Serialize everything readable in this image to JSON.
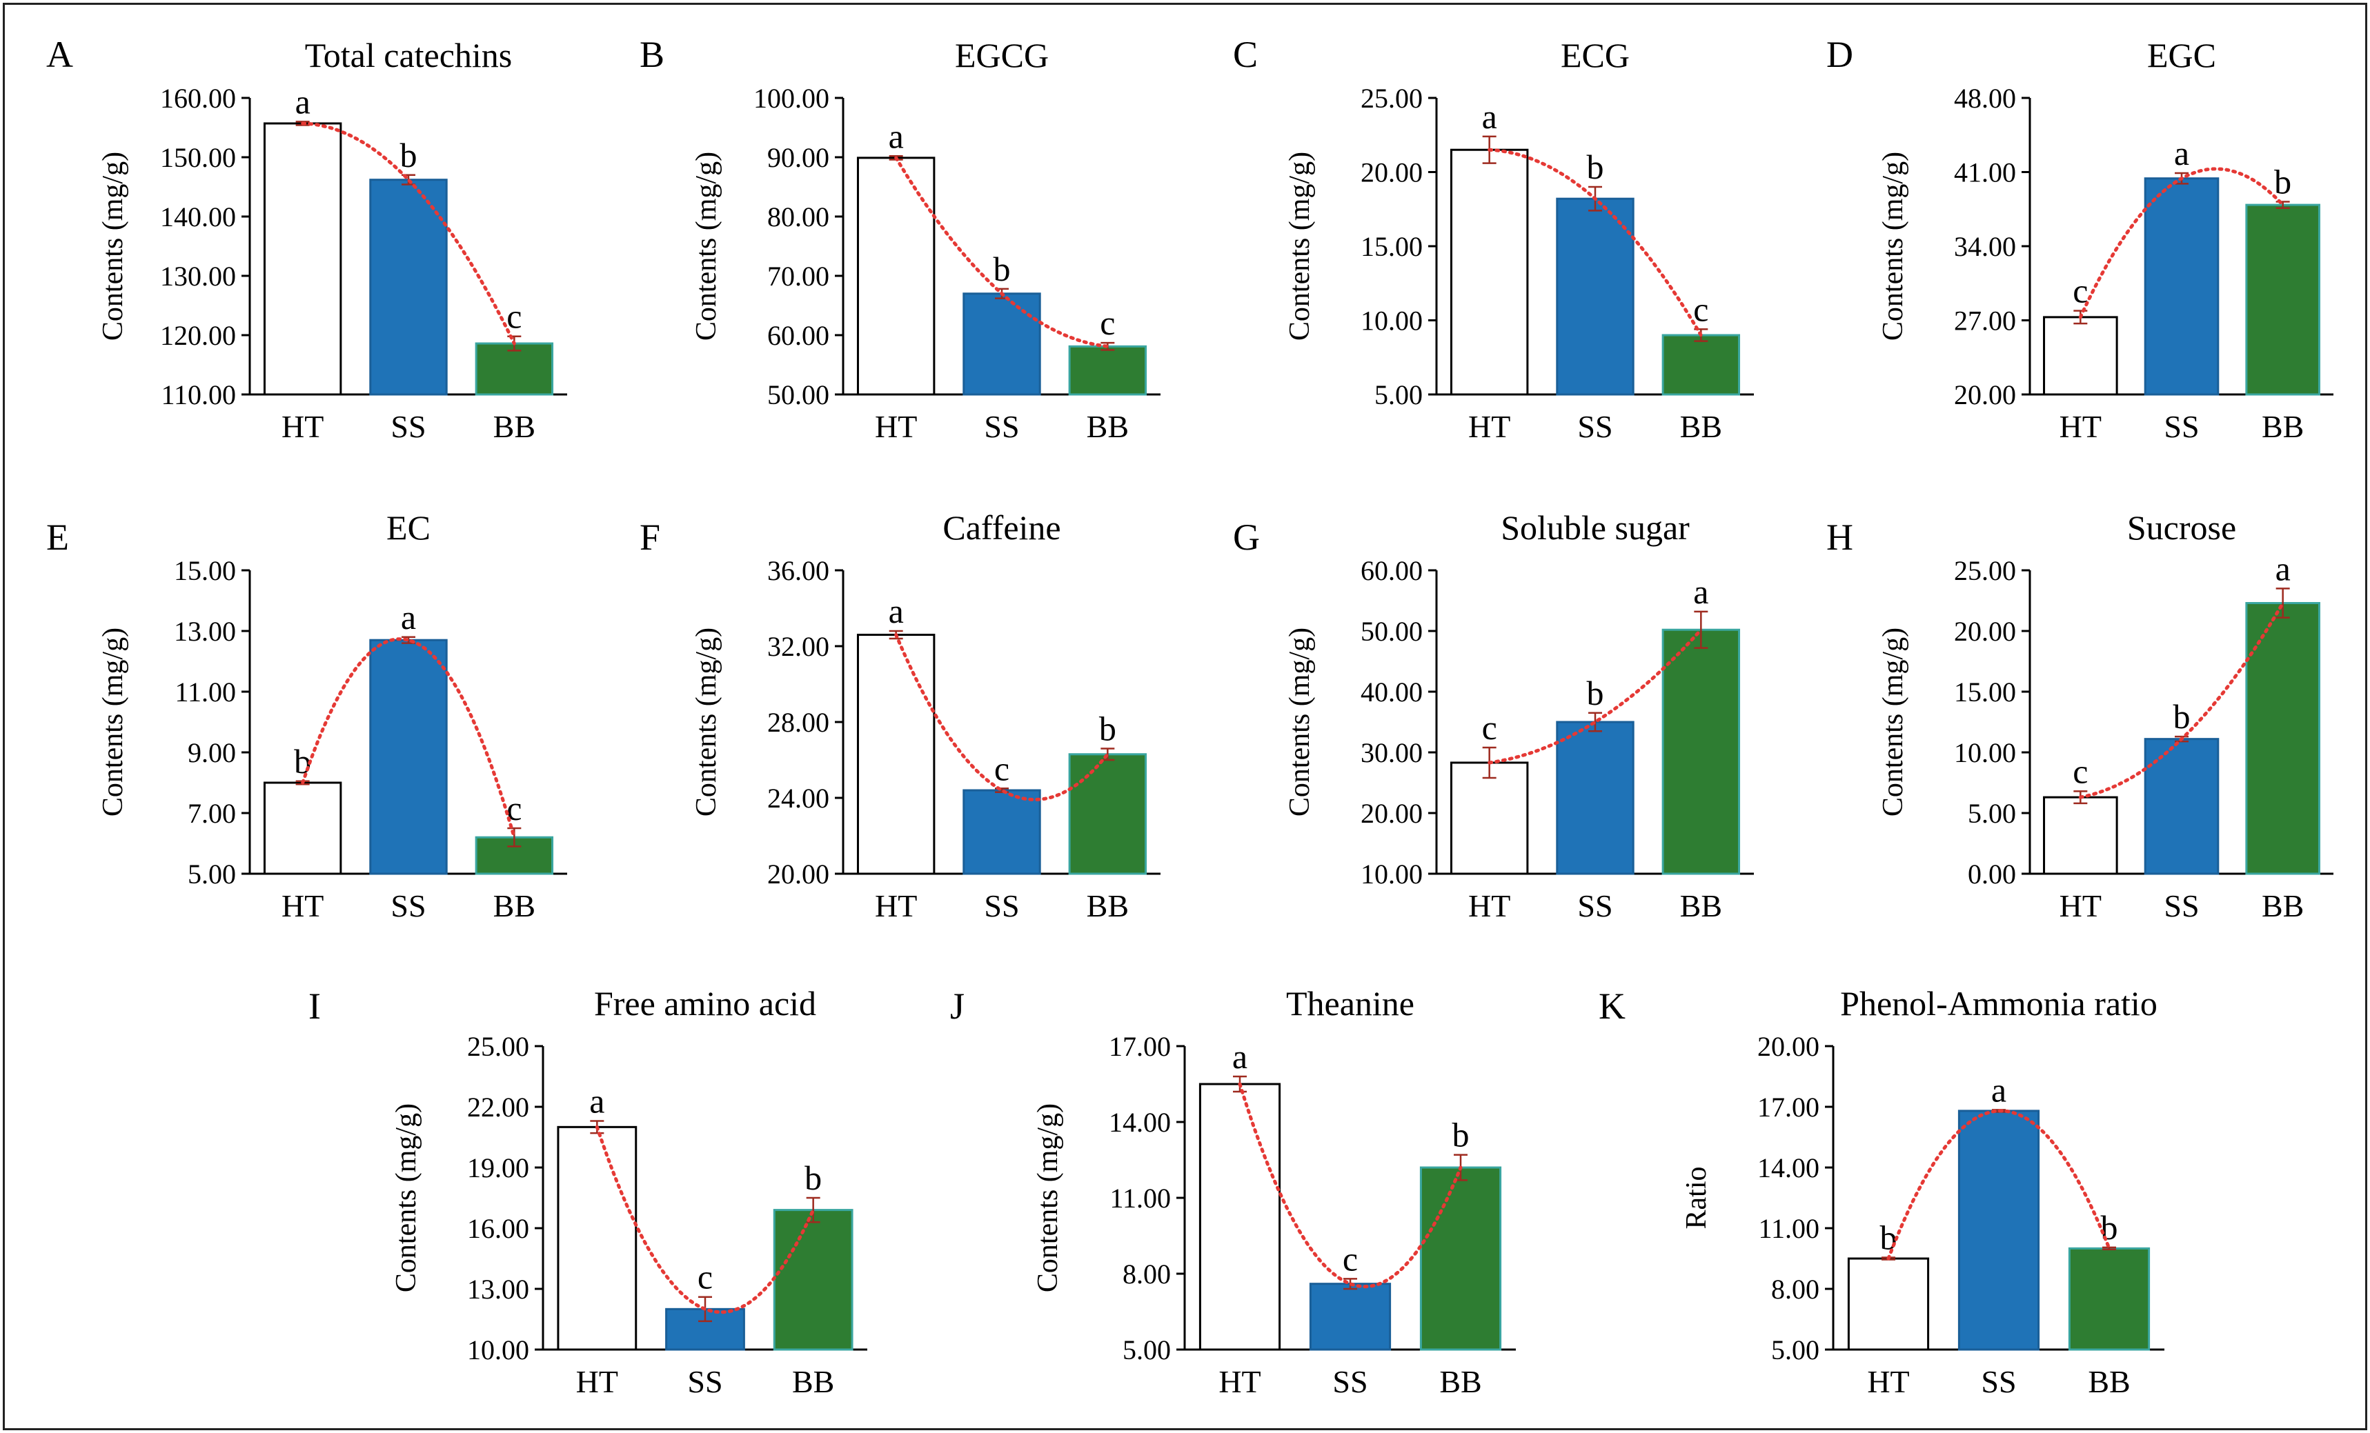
{
  "chart_data": [
    {
      "type": "bar",
      "letter": "A",
      "title": "Total catechins",
      "ylabel": "Contents (mg/g)",
      "categories": [
        "HT",
        "SS",
        "BB"
      ],
      "values": [
        155.7,
        146.2,
        118.6
      ],
      "errors": [
        0.3,
        0.8,
        1.2
      ],
      "sig": [
        "a",
        "b",
        "c"
      ],
      "ylim": [
        110,
        160
      ],
      "yticks": [
        110,
        120,
        130,
        140,
        150,
        160
      ],
      "yticklabels": [
        "110.00",
        "120.00",
        "130.00",
        "140.00",
        "150.00",
        "160.00"
      ]
    },
    {
      "type": "bar",
      "letter": "B",
      "title": "EGCG",
      "ylabel": "Contents (mg/g)",
      "categories": [
        "HT",
        "SS",
        "BB"
      ],
      "values": [
        89.9,
        67.0,
        58.1
      ],
      "errors": [
        0.3,
        0.8,
        0.6
      ],
      "sig": [
        "a",
        "b",
        "c"
      ],
      "ylim": [
        50,
        100
      ],
      "yticks": [
        50,
        60,
        70,
        80,
        90,
        100
      ],
      "yticklabels": [
        "50.00",
        "60.00",
        "70.00",
        "80.00",
        "90.00",
        "100.00"
      ]
    },
    {
      "type": "bar",
      "letter": "C",
      "title": "ECG",
      "ylabel": "Contents (mg/g)",
      "categories": [
        "HT",
        "SS",
        "BB"
      ],
      "values": [
        21.5,
        18.2,
        9.0
      ],
      "errors": [
        0.9,
        0.8,
        0.4
      ],
      "sig": [
        "a",
        "b",
        "c"
      ],
      "ylim": [
        5,
        25
      ],
      "yticks": [
        5,
        10,
        15,
        20,
        25
      ],
      "yticklabels": [
        "5.00",
        "10.00",
        "15.00",
        "20.00",
        "25.00"
      ]
    },
    {
      "type": "bar",
      "letter": "D",
      "title": "EGC",
      "ylabel": "Contents (mg/g)",
      "categories": [
        "HT",
        "SS",
        "BB"
      ],
      "values": [
        27.3,
        40.4,
        37.9
      ],
      "errors": [
        0.6,
        0.5,
        0.3
      ],
      "sig": [
        "c",
        "a",
        "b"
      ],
      "ylim": [
        20,
        48
      ],
      "yticks": [
        20,
        27,
        34,
        41,
        48
      ],
      "yticklabels": [
        "20.00",
        "27.00",
        "34.00",
        "41.00",
        "48.00"
      ]
    },
    {
      "type": "bar",
      "letter": "E",
      "title": "EC",
      "ylabel": "Contents (mg/g)",
      "categories": [
        "HT",
        "SS",
        "BB"
      ],
      "values": [
        8.0,
        12.7,
        6.2
      ],
      "errors": [
        0.05,
        0.1,
        0.3
      ],
      "sig": [
        "b",
        "a",
        "c"
      ],
      "ylim": [
        5,
        15
      ],
      "yticks": [
        5,
        7,
        9,
        11,
        13,
        15
      ],
      "yticklabels": [
        "5.00",
        "7.00",
        "9.00",
        "11.00",
        "13.00",
        "15.00"
      ]
    },
    {
      "type": "bar",
      "letter": "F",
      "title": "Caffeine",
      "ylabel": "Contents (mg/g)",
      "categories": [
        "HT",
        "SS",
        "BB"
      ],
      "values": [
        32.6,
        24.4,
        26.3
      ],
      "errors": [
        0.2,
        0.1,
        0.3
      ],
      "sig": [
        "a",
        "c",
        "b"
      ],
      "ylim": [
        20,
        36
      ],
      "yticks": [
        20,
        24,
        28,
        32,
        36
      ],
      "yticklabels": [
        "20.00",
        "24.00",
        "28.00",
        "32.00",
        "36.00"
      ]
    },
    {
      "type": "bar",
      "letter": "G",
      "title": "Soluble sugar",
      "ylabel": "Contents (mg/g)",
      "categories": [
        "HT",
        "SS",
        "BB"
      ],
      "values": [
        28.3,
        35.0,
        50.2
      ],
      "errors": [
        2.5,
        1.5,
        3.0
      ],
      "sig": [
        "c",
        "b",
        "a"
      ],
      "ylim": [
        10,
        60
      ],
      "yticks": [
        10,
        20,
        30,
        40,
        50,
        60
      ],
      "yticklabels": [
        "10.00",
        "20.00",
        "30.00",
        "40.00",
        "50.00",
        "60.00"
      ]
    },
    {
      "type": "bar",
      "letter": "H",
      "title": "Sucrose",
      "ylabel": "Contents (mg/g)",
      "categories": [
        "HT",
        "SS",
        "BB"
      ],
      "values": [
        6.3,
        11.1,
        22.3
      ],
      "errors": [
        0.5,
        0.2,
        1.2
      ],
      "sig": [
        "c",
        "b",
        "a"
      ],
      "ylim": [
        0,
        25
      ],
      "yticks": [
        0,
        5,
        10,
        15,
        20,
        25
      ],
      "yticklabels": [
        "0.00",
        "5.00",
        "10.00",
        "15.00",
        "20.00",
        "25.00"
      ]
    },
    {
      "type": "bar",
      "letter": "I",
      "title": "Free amino acid",
      "ylabel": "Contents (mg/g)",
      "categories": [
        "HT",
        "SS",
        "BB"
      ],
      "values": [
        21.0,
        12.0,
        16.9
      ],
      "errors": [
        0.3,
        0.6,
        0.6
      ],
      "sig": [
        "a",
        "c",
        "b"
      ],
      "ylim": [
        10,
        25
      ],
      "yticks": [
        10,
        13,
        16,
        19,
        22,
        25
      ],
      "yticklabels": [
        "10.00",
        "13.00",
        "16.00",
        "19.00",
        "22.00",
        "25.00"
      ]
    },
    {
      "type": "bar",
      "letter": "J",
      "title": "Theanine",
      "ylabel": "Contents (mg/g)",
      "categories": [
        "HT",
        "SS",
        "BB"
      ],
      "values": [
        15.5,
        7.6,
        12.2
      ],
      "errors": [
        0.3,
        0.2,
        0.5
      ],
      "sig": [
        "a",
        "c",
        "b"
      ],
      "ylim": [
        5,
        17
      ],
      "yticks": [
        5,
        8,
        11,
        14,
        17
      ],
      "yticklabels": [
        "5.00",
        "8.00",
        "11.00",
        "14.00",
        "17.00"
      ]
    },
    {
      "type": "bar",
      "letter": "K",
      "title": "Phenol-Ammonia ratio",
      "ylabel": "Ratio",
      "categories": [
        "HT",
        "SS",
        "BB"
      ],
      "values": [
        9.5,
        16.8,
        10.0
      ],
      "errors": [
        0.05,
        0.05,
        0.05
      ],
      "sig": [
        "b",
        "a",
        "b"
      ],
      "ylim": [
        5,
        20
      ],
      "yticks": [
        5,
        8,
        11,
        14,
        17,
        20
      ],
      "yticklabels": [
        "5.00",
        "8.00",
        "11.00",
        "14.00",
        "17.00",
        "20.00"
      ]
    }
  ],
  "colors": {
    "HT": "#ffffff",
    "SS": "#1f73b7",
    "BB": "#2e7d32",
    "trend": "#e53935",
    "error": "#9e2a1f",
    "axis": "#000000"
  }
}
